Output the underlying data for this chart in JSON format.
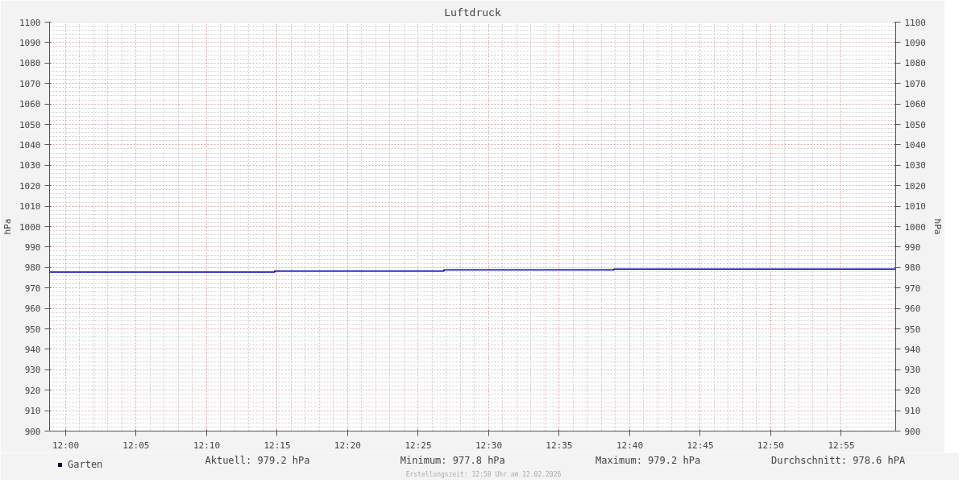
{
  "chart_data": {
    "type": "step",
    "title": "Luftdruck",
    "ylabel": "hPa",
    "y2label": "hPa",
    "x": [
      11.981,
      12.247,
      12.447,
      12.648,
      12.981
    ],
    "series": [
      {
        "name": "Garten",
        "color": "#0000aa",
        "values": [
          977.8,
          978.2,
          978.8,
          979.2,
          979.2
        ]
      }
    ],
    "xlim": [
      11.981,
      12.981
    ],
    "xticks": [
      {
        "value": 12.0,
        "label": "12:00"
      },
      {
        "value": 12.0833,
        "label": "12:05"
      },
      {
        "value": 12.1667,
        "label": "12:10"
      },
      {
        "value": 12.25,
        "label": "12:15"
      },
      {
        "value": 12.3333,
        "label": "12:20"
      },
      {
        "value": 12.4167,
        "label": "12:25"
      },
      {
        "value": 12.5,
        "label": "12:30"
      },
      {
        "value": 12.5833,
        "label": "12:35"
      },
      {
        "value": 12.6667,
        "label": "12:40"
      },
      {
        "value": 12.75,
        "label": "12:45"
      },
      {
        "value": 12.8333,
        "label": "12:50"
      },
      {
        "value": 12.9167,
        "label": "12:55"
      }
    ],
    "ylim": [
      900,
      1100
    ],
    "yticks": [
      900,
      910,
      920,
      930,
      940,
      950,
      960,
      970,
      980,
      990,
      1000,
      1010,
      1020,
      1030,
      1040,
      1050,
      1060,
      1070,
      1080,
      1090,
      1100
    ],
    "y2lim": [
      900,
      1100
    ],
    "y2ticks": [
      900,
      910,
      920,
      930,
      940,
      950,
      960,
      970,
      980,
      990,
      1000,
      1010,
      1020,
      1030,
      1040,
      1050,
      1060,
      1070,
      1080,
      1090,
      1100
    ],
    "grid": true,
    "legend": "bottom",
    "line_style": "solid",
    "marker": "none",
    "annotations": [
      "Aktuell: 979.2 hPa",
      "Minimum: 977.8 hPa",
      "Maximum: 979.2 hPa",
      "Durchschnitt: 978.6 hPA",
      "Erstellungszeit: 12:58 Uhr am 12.02.2026"
    ]
  }
}
